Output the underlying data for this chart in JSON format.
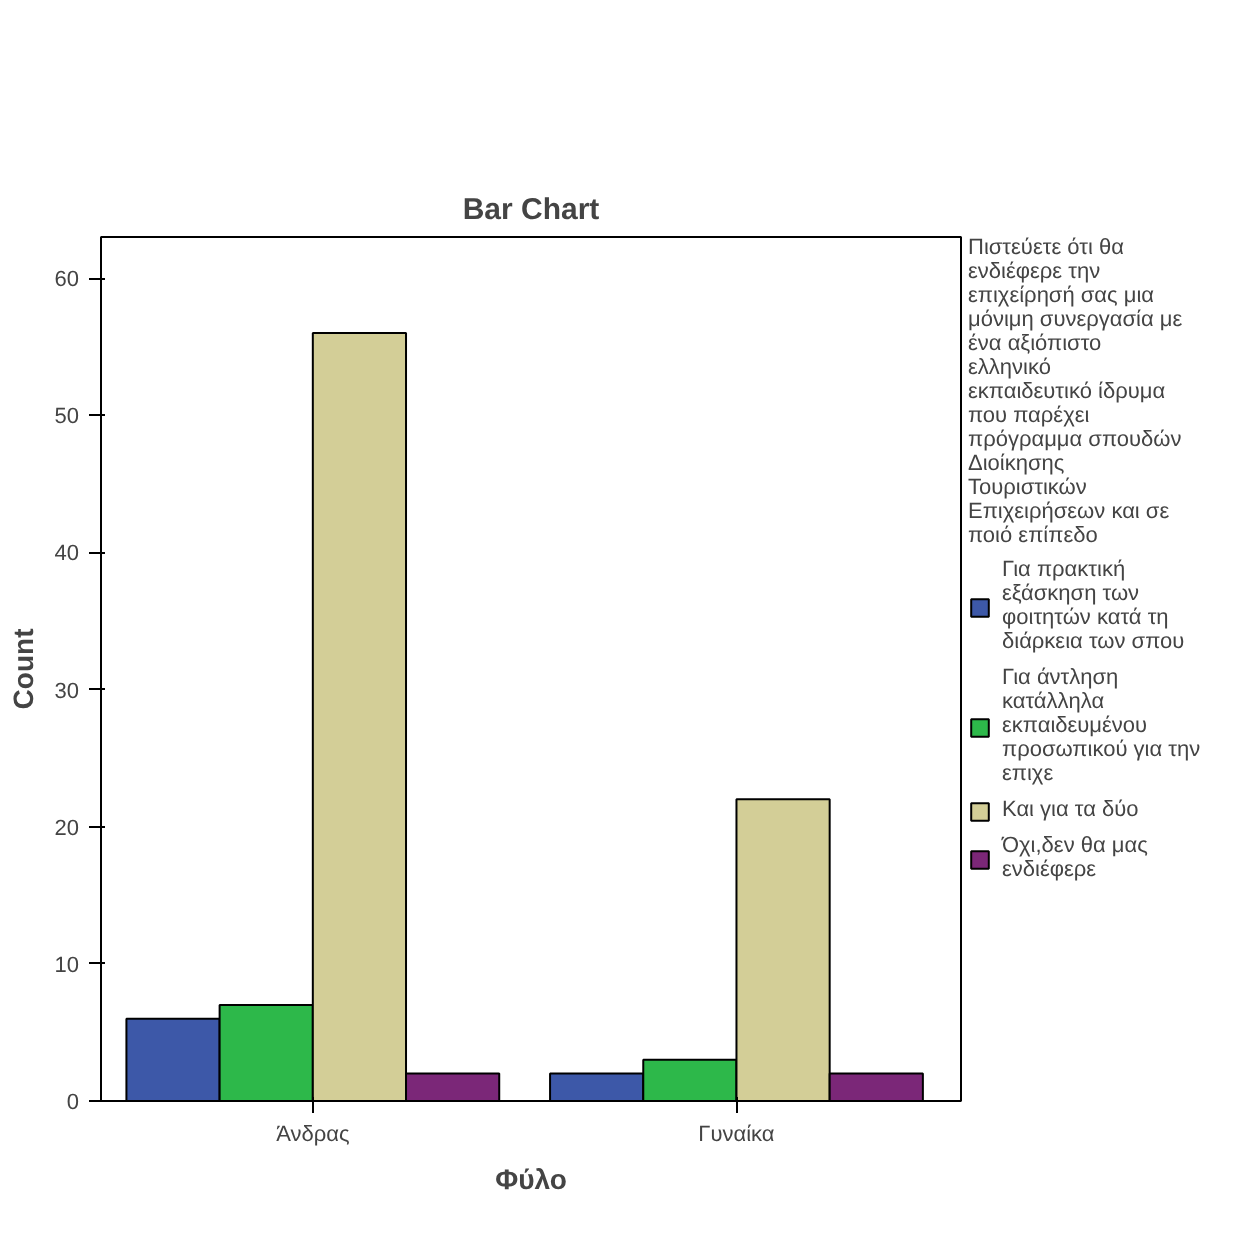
{
  "chart_data": {
    "type": "bar",
    "title": "Bar Chart",
    "xlabel": "Φύλο",
    "ylabel": "Count",
    "legend_title": "Πιστεύετε ότι θα ενδιέφερε την επιχείρησή σας μια μόνιμη συνεργασία με ένα αξιόπιστο ελληνικό εκπαιδευτικό ίδρυμα που παρέχει πρόγραμμα σπουδών Διοίκησης Τουριστικών Επιχειρήσεων και σε ποιό επίπεδο",
    "categories": [
      "Άνδρας",
      "Γυναίκα"
    ],
    "series": [
      {
        "name": "Για πρακτική εξάσκηση των φοιτητών κατά τη διάρκεια των σπου",
        "color": "#3d58a8",
        "values": [
          6,
          2
        ]
      },
      {
        "name": "Για άντληση κατάλληλα εκπαιδευμένου προσωπικού για την επιχε",
        "color": "#2db84a",
        "values": [
          7,
          3
        ]
      },
      {
        "name": "Και για τα δύο",
        "color": "#d3ce97",
        "values": [
          56,
          22
        ]
      },
      {
        "name": "Όχι,δεν θα μας ενδιέφερε",
        "color": "#7b2778",
        "values": [
          2,
          2
        ]
      }
    ],
    "ylim": [
      0,
      63
    ],
    "yticks": [
      0,
      10,
      20,
      30,
      40,
      50,
      60
    ],
    "legend": "right"
  }
}
